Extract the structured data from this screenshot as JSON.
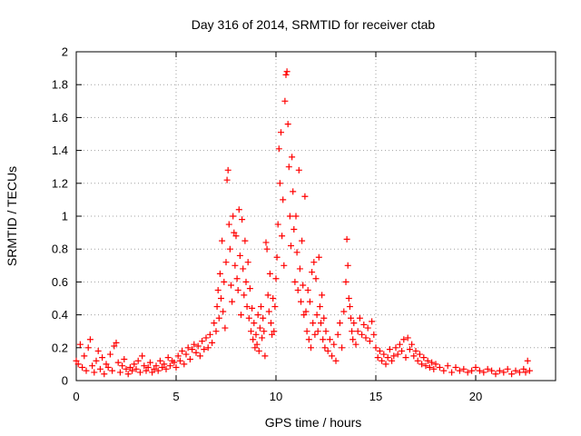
{
  "chart_data": {
    "type": "scatter",
    "title": "Day 316 of 2014, SRMTID for receiver ctab",
    "xlabel": "GPS time / hours",
    "ylabel": "SRMTID / TECUs",
    "xlim": [
      0,
      24
    ],
    "ylim": [
      0,
      2
    ],
    "xticks": [
      0,
      5,
      10,
      15,
      20
    ],
    "yticks": [
      0,
      0.2,
      0.4,
      0.6,
      0.8,
      1,
      1.2,
      1.4,
      1.6,
      1.8,
      2
    ],
    "xtick_labels": [
      "0",
      "5",
      "10",
      "15",
      "20"
    ],
    "ytick_labels": [
      "0",
      "0.2",
      "0.4",
      "0.6",
      "0.8",
      "1",
      "1.2",
      "1.4",
      "1.6",
      "1.8",
      "2"
    ],
    "grid": true,
    "marker": "plus",
    "marker_color": "#ff0000",
    "series": [
      {
        "name": "SRMTID",
        "points": [
          [
            0.0,
            0.12
          ],
          [
            0.1,
            0.1
          ],
          [
            0.2,
            0.22
          ],
          [
            0.3,
            0.08
          ],
          [
            0.4,
            0.15
          ],
          [
            0.5,
            0.06
          ],
          [
            0.6,
            0.2
          ],
          [
            0.7,
            0.25
          ],
          [
            0.8,
            0.09
          ],
          [
            0.9,
            0.05
          ],
          [
            1.0,
            0.12
          ],
          [
            1.1,
            0.18
          ],
          [
            1.2,
            0.07
          ],
          [
            1.3,
            0.14
          ],
          [
            1.4,
            0.04
          ],
          [
            1.5,
            0.1
          ],
          [
            1.6,
            0.08
          ],
          [
            1.7,
            0.16
          ],
          [
            1.8,
            0.06
          ],
          [
            1.9,
            0.21
          ],
          [
            2.0,
            0.23
          ],
          [
            2.1,
            0.11
          ],
          [
            2.2,
            0.05
          ],
          [
            2.3,
            0.09
          ],
          [
            2.4,
            0.13
          ],
          [
            2.5,
            0.07
          ],
          [
            2.6,
            0.04
          ],
          [
            2.7,
            0.08
          ],
          [
            2.8,
            0.06
          ],
          [
            2.9,
            0.1
          ],
          [
            3.0,
            0.07
          ],
          [
            3.1,
            0.12
          ],
          [
            3.2,
            0.05
          ],
          [
            3.3,
            0.15
          ],
          [
            3.4,
            0.09
          ],
          [
            3.5,
            0.06
          ],
          [
            3.6,
            0.08
          ],
          [
            3.7,
            0.11
          ],
          [
            3.8,
            0.05
          ],
          [
            3.9,
            0.07
          ],
          [
            4.0,
            0.09
          ],
          [
            4.1,
            0.06
          ],
          [
            4.2,
            0.12
          ],
          [
            4.3,
            0.08
          ],
          [
            4.4,
            0.1
          ],
          [
            4.5,
            0.07
          ],
          [
            4.6,
            0.14
          ],
          [
            4.7,
            0.09
          ],
          [
            4.8,
            0.12
          ],
          [
            4.9,
            0.11
          ],
          [
            5.0,
            0.08
          ],
          [
            5.1,
            0.15
          ],
          [
            5.2,
            0.12
          ],
          [
            5.3,
            0.18
          ],
          [
            5.4,
            0.1
          ],
          [
            5.5,
            0.16
          ],
          [
            5.6,
            0.2
          ],
          [
            5.7,
            0.13
          ],
          [
            5.8,
            0.19
          ],
          [
            5.9,
            0.22
          ],
          [
            6.0,
            0.17
          ],
          [
            6.1,
            0.21
          ],
          [
            6.2,
            0.15
          ],
          [
            6.3,
            0.24
          ],
          [
            6.4,
            0.19
          ],
          [
            6.5,
            0.26
          ],
          [
            6.6,
            0.2
          ],
          [
            6.7,
            0.28
          ],
          [
            6.8,
            0.23
          ],
          [
            6.9,
            0.35
          ],
          [
            7.0,
            0.3
          ],
          [
            7.05,
            0.45
          ],
          [
            7.1,
            0.55
          ],
          [
            7.15,
            0.38
          ],
          [
            7.2,
            0.65
          ],
          [
            7.25,
            0.5
          ],
          [
            7.3,
            0.85
          ],
          [
            7.35,
            0.42
          ],
          [
            7.4,
            0.6
          ],
          [
            7.45,
            0.32
          ],
          [
            7.5,
            0.72
          ],
          [
            7.55,
            1.22
          ],
          [
            7.6,
            1.28
          ],
          [
            7.65,
            0.95
          ],
          [
            7.7,
            0.8
          ],
          [
            7.75,
            0.58
          ],
          [
            7.8,
            0.48
          ],
          [
            7.85,
            1.0
          ],
          [
            7.9,
            0.9
          ],
          [
            7.95,
            0.7
          ],
          [
            8.0,
            0.88
          ],
          [
            8.05,
            0.62
          ],
          [
            8.1,
            0.55
          ],
          [
            8.15,
            1.04
          ],
          [
            8.2,
            0.76
          ],
          [
            8.25,
            0.4
          ],
          [
            8.3,
            0.98
          ],
          [
            8.35,
            0.68
          ],
          [
            8.4,
            0.52
          ],
          [
            8.45,
            0.85
          ],
          [
            8.5,
            0.6
          ],
          [
            8.55,
            0.45
          ],
          [
            8.6,
            0.72
          ],
          [
            8.65,
            0.38
          ],
          [
            8.7,
            0.56
          ],
          [
            8.75,
            0.3
          ],
          [
            8.8,
            0.44
          ],
          [
            8.85,
            0.25
          ],
          [
            8.9,
            0.35
          ],
          [
            8.95,
            0.2
          ],
          [
            9.0,
            0.28
          ],
          [
            9.05,
            0.22
          ],
          [
            9.1,
            0.4
          ],
          [
            9.15,
            0.18
          ],
          [
            9.2,
            0.32
          ],
          [
            9.25,
            0.45
          ],
          [
            9.3,
            0.26
          ],
          [
            9.35,
            0.38
          ],
          [
            9.4,
            0.3
          ],
          [
            9.45,
            0.15
          ],
          [
            9.5,
            0.84
          ],
          [
            9.55,
            0.8
          ],
          [
            9.6,
            0.52
          ],
          [
            9.65,
            0.42
          ],
          [
            9.7,
            0.65
          ],
          [
            9.75,
            0.35
          ],
          [
            9.8,
            0.28
          ],
          [
            9.85,
            0.5
          ],
          [
            9.9,
            0.3
          ],
          [
            9.95,
            0.45
          ],
          [
            10.0,
            0.62
          ],
          [
            10.05,
            0.75
          ],
          [
            10.1,
            0.95
          ],
          [
            10.15,
            1.41
          ],
          [
            10.2,
            1.2
          ],
          [
            10.25,
            1.51
          ],
          [
            10.3,
            0.88
          ],
          [
            10.35,
            1.1
          ],
          [
            10.4,
            0.7
          ],
          [
            10.45,
            1.7
          ],
          [
            10.5,
            1.86
          ],
          [
            10.55,
            1.88
          ],
          [
            10.6,
            1.56
          ],
          [
            10.65,
            1.3
          ],
          [
            10.7,
            1.0
          ],
          [
            10.75,
            0.82
          ],
          [
            10.8,
            1.36
          ],
          [
            10.85,
            1.15
          ],
          [
            10.9,
            0.92
          ],
          [
            10.95,
            0.6
          ],
          [
            11.0,
            1.0
          ],
          [
            11.05,
            0.78
          ],
          [
            11.1,
            0.55
          ],
          [
            11.15,
            1.28
          ],
          [
            11.2,
            0.68
          ],
          [
            11.25,
            0.48
          ],
          [
            11.3,
            0.85
          ],
          [
            11.35,
            0.58
          ],
          [
            11.4,
            0.4
          ],
          [
            11.45,
            1.12
          ],
          [
            11.5,
            0.42
          ],
          [
            11.55,
            0.3
          ],
          [
            11.6,
            0.55
          ],
          [
            11.65,
            0.25
          ],
          [
            11.7,
            0.48
          ],
          [
            11.75,
            0.2
          ],
          [
            11.8,
            0.66
          ],
          [
            11.85,
            0.35
          ],
          [
            11.9,
            0.72
          ],
          [
            11.95,
            0.28
          ],
          [
            12.0,
            0.62
          ],
          [
            12.05,
            0.4
          ],
          [
            12.1,
            0.3
          ],
          [
            12.15,
            0.75
          ],
          [
            12.2,
            0.45
          ],
          [
            12.25,
            0.35
          ],
          [
            12.3,
            0.52
          ],
          [
            12.35,
            0.25
          ],
          [
            12.4,
            0.38
          ],
          [
            12.45,
            0.2
          ],
          [
            12.5,
            0.3
          ],
          [
            12.6,
            0.18
          ],
          [
            12.7,
            0.25
          ],
          [
            12.8,
            0.15
          ],
          [
            12.9,
            0.22
          ],
          [
            13.0,
            0.12
          ],
          [
            13.1,
            0.28
          ],
          [
            13.2,
            0.35
          ],
          [
            13.3,
            0.2
          ],
          [
            13.4,
            0.42
          ],
          [
            13.5,
            0.6
          ],
          [
            13.55,
            0.86
          ],
          [
            13.6,
            0.7
          ],
          [
            13.65,
            0.5
          ],
          [
            13.7,
            0.45
          ],
          [
            13.75,
            0.38
          ],
          [
            13.8,
            0.3
          ],
          [
            13.85,
            0.25
          ],
          [
            13.9,
            0.35
          ],
          [
            14.0,
            0.22
          ],
          [
            14.1,
            0.3
          ],
          [
            14.2,
            0.38
          ],
          [
            14.3,
            0.28
          ],
          [
            14.4,
            0.34
          ],
          [
            14.5,
            0.26
          ],
          [
            14.6,
            0.32
          ],
          [
            14.7,
            0.24
          ],
          [
            14.8,
            0.36
          ],
          [
            14.9,
            0.28
          ],
          [
            15.0,
            0.2
          ],
          [
            15.1,
            0.14
          ],
          [
            15.2,
            0.18
          ],
          [
            15.3,
            0.12
          ],
          [
            15.4,
            0.16
          ],
          [
            15.5,
            0.1
          ],
          [
            15.6,
            0.14
          ],
          [
            15.7,
            0.19
          ],
          [
            15.8,
            0.12
          ],
          [
            15.9,
            0.15
          ],
          [
            16.0,
            0.2
          ],
          [
            16.1,
            0.16
          ],
          [
            16.2,
            0.22
          ],
          [
            16.3,
            0.18
          ],
          [
            16.4,
            0.25
          ],
          [
            16.5,
            0.14
          ],
          [
            16.6,
            0.26
          ],
          [
            16.7,
            0.19
          ],
          [
            16.8,
            0.22
          ],
          [
            16.9,
            0.15
          ],
          [
            17.0,
            0.18
          ],
          [
            17.1,
            0.12
          ],
          [
            17.2,
            0.16
          ],
          [
            17.3,
            0.1
          ],
          [
            17.4,
            0.14
          ],
          [
            17.5,
            0.09
          ],
          [
            17.6,
            0.12
          ],
          [
            17.7,
            0.08
          ],
          [
            17.8,
            0.11
          ],
          [
            17.9,
            0.07
          ],
          [
            18.0,
            0.1
          ],
          [
            18.2,
            0.08
          ],
          [
            18.4,
            0.06
          ],
          [
            18.6,
            0.09
          ],
          [
            18.8,
            0.05
          ],
          [
            19.0,
            0.08
          ],
          [
            19.2,
            0.06
          ],
          [
            19.4,
            0.07
          ],
          [
            19.6,
            0.05
          ],
          [
            19.8,
            0.06
          ],
          [
            20.0,
            0.08
          ],
          [
            20.2,
            0.06
          ],
          [
            20.4,
            0.05
          ],
          [
            20.6,
            0.07
          ],
          [
            20.8,
            0.06
          ],
          [
            21.0,
            0.04
          ],
          [
            21.2,
            0.06
          ],
          [
            21.4,
            0.05
          ],
          [
            21.6,
            0.07
          ],
          [
            21.8,
            0.04
          ],
          [
            22.0,
            0.06
          ],
          [
            22.2,
            0.05
          ],
          [
            22.4,
            0.07
          ],
          [
            22.5,
            0.05
          ],
          [
            22.6,
            0.12
          ],
          [
            22.7,
            0.06
          ]
        ]
      }
    ]
  }
}
